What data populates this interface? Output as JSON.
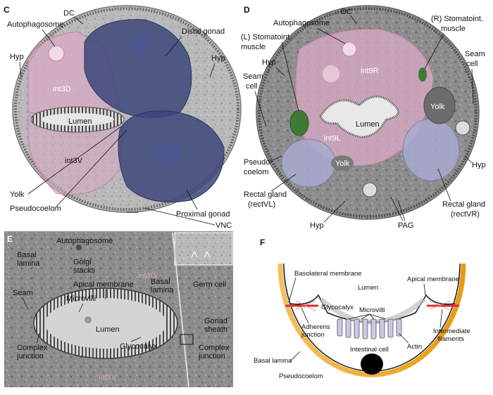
{
  "panels": {
    "C": {
      "letter": "C",
      "labels": {
        "dc": "DC",
        "autophagosome": "Autophagosome",
        "distal_gonad": "Distal gonad",
        "hyp_left": "Hyp",
        "hyp_right": "Hyp",
        "int3d": "int3D",
        "lumen": "Lumen",
        "int3v": "int3V",
        "yolk": "Yolk",
        "pseudocoelom": "Pseudocoelom",
        "proximal_gonad": "Proximal gonad",
        "vnc": "VNC"
      }
    },
    "D": {
      "letter": "D",
      "labels": {
        "dc": "DC",
        "autophagosome": "Autophagosome",
        "r_stomatoint": "(R) Stomatoint.",
        "r_muscle": "muscle",
        "l_stomatoint": "(L) Stomatoint.",
        "l_muscle": "muscle",
        "int9r": "int9R",
        "seam_right_1": "Seam",
        "seam_right_2": "cell",
        "hyp_top": "Hyp",
        "seam_left_1": "Seam",
        "seam_left_2": "cell",
        "yolk_right": "Yolk",
        "lumen": "Lumen",
        "int9l": "int9L",
        "hyp_right": "Hyp",
        "yolk_center": "Yolk",
        "pseudo_1": "Pseudo-",
        "pseudo_2": "coelom",
        "rect_vl_1": "Rectal gland",
        "rect_vl_2": "(rectVL)",
        "rect_vr_1": "Rectal gland",
        "rect_vr_2": "(rectVR)",
        "hyp_bottom": "Hyp",
        "pag": "PAG"
      }
    },
    "E": {
      "letter": "E",
      "labels": {
        "autophagosome": "Autophagosome",
        "basal_lamina_left_1": "Basal",
        "basal_lamina_left_2": "lamina",
        "golgi_1": "Golgi",
        "golgi_2": "stacks",
        "int3d": "int3D",
        "apical_membrane": "Apical membrane",
        "basal_lamina_right_1": "Basal",
        "basal_lamina_right_2": "lamina",
        "germ_cell": "Germ cell",
        "seam": "Seam",
        "microvilli": "Microvilli",
        "lumen": "Lumen",
        "gonad_sheath_1": "Gonad",
        "gonad_sheath_2": "sheath",
        "glycocalyx": "Glycocalyx",
        "complex_left_1": "Complex",
        "complex_left_2": "junction",
        "complex_right_1": "Complex",
        "complex_right_2": "junction",
        "int3v": "int3V"
      }
    },
    "F": {
      "letter": "F",
      "labels": {
        "basolateral_membrane": "Basolateral membrane",
        "apical_membrane": "Apical membrane",
        "lumen": "Lumen",
        "glycocalyx": "Glycocalyx",
        "microvilli": "Microvilli",
        "adherens_1": "Adherens",
        "adherens_2": "junction",
        "intermediate_1": "Intermediate",
        "intermediate_2": "filaments",
        "actin": "Actin",
        "intestinal_cell": "Intestinal cell",
        "basal_lamina": "Basal lamina",
        "pseudocoelom": "Pseudocoelom"
      }
    }
  },
  "colors": {
    "pink_cell": "#d9a9c4",
    "blue_gonad": "#3b4679",
    "lavender_gland": "#a9a9cf",
    "green_muscle": "#3f7a35",
    "em_gray": "#8f8f8f",
    "lamina_orange": "#f0a020",
    "villi_fill": "#c9c9e6",
    "junction_red": "#d83030"
  }
}
